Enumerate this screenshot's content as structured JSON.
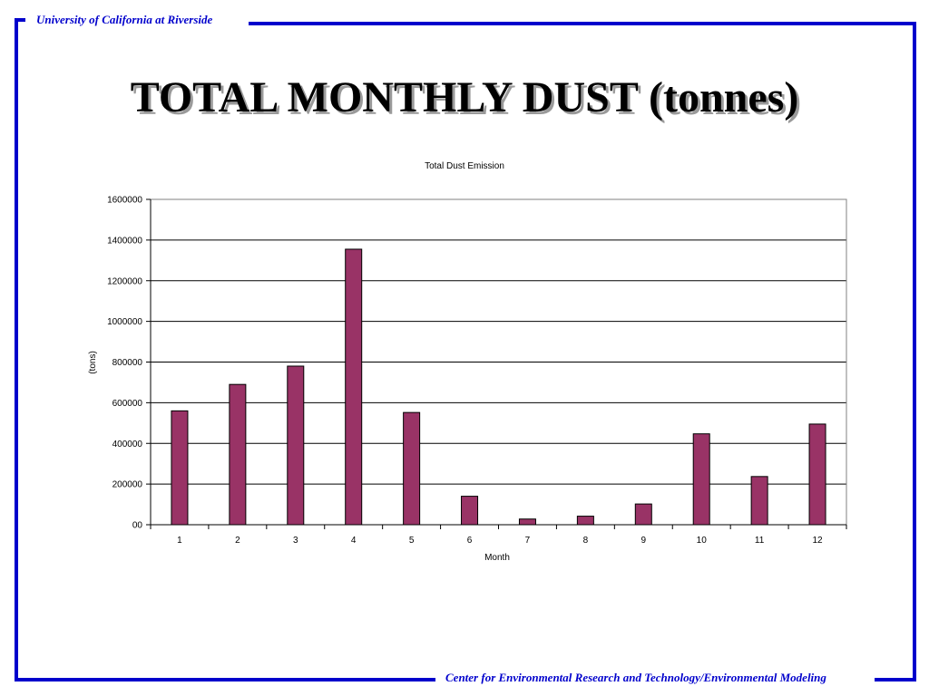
{
  "header": {
    "org": "University of California at Riverside"
  },
  "footer": {
    "org": "Center for Environmental Research and Technology/Environmental Modeling"
  },
  "slide": {
    "title": "TOTAL MONTHLY DUST (tonnes)"
  },
  "colors": {
    "frame": "#0000cc",
    "bar": "#993366",
    "grid": "#000000"
  },
  "chart_data": {
    "type": "bar",
    "title": "Total Dust Emission",
    "xlabel": "Month",
    "ylabel": "(tons)",
    "categories": [
      "1",
      "2",
      "3",
      "4",
      "5",
      "6",
      "7",
      "8",
      "9",
      "10",
      "11",
      "12"
    ],
    "values": [
      560000,
      690000,
      780000,
      1355000,
      552000,
      140000,
      28000,
      42000,
      102000,
      447000,
      237000,
      495000
    ],
    "ylim": [
      0,
      1600000
    ],
    "yticks": [
      0,
      200000,
      400000,
      600000,
      800000,
      1000000,
      1200000,
      1400000,
      1600000
    ],
    "ytick_labels": [
      "00",
      "200000",
      "400000",
      "600000",
      "800000",
      "1000000",
      "1200000",
      "1400000",
      "1600000"
    ],
    "grid": true,
    "legend": "none"
  }
}
